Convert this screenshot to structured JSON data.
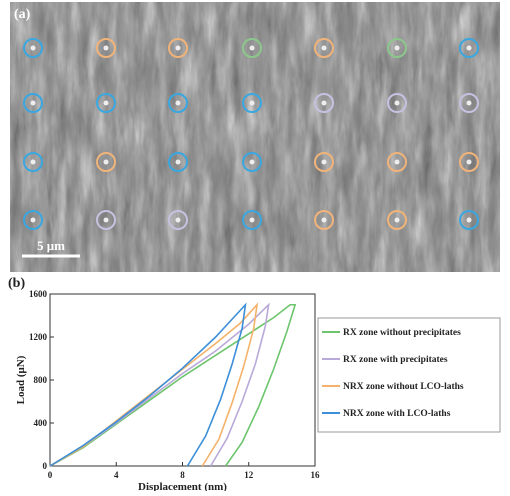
{
  "panel_a": {
    "label": "(a)",
    "scale_bar": "5 μm"
  },
  "chart_data": {
    "type": "line",
    "label": "(b)",
    "xlabel": "Displacement (nm)",
    "ylabel": "Load (μN)",
    "xlim": [
      0,
      16
    ],
    "xticks": [
      0,
      4,
      8,
      12,
      16
    ],
    "ylim": [
      0,
      1600
    ],
    "yticks": [
      0,
      400,
      800,
      1200,
      1600
    ],
    "legend": "right",
    "series": [
      {
        "name": "RX zone without precipitates",
        "color": "#6cc56c",
        "x": [
          0,
          2,
          4,
          6,
          8,
          10,
          12,
          13.5,
          14.5,
          14.8,
          14.3,
          13.5,
          12.6,
          11.6,
          10.6
        ],
        "values": [
          0,
          170,
          390,
          610,
          830,
          1030,
          1230,
          1380,
          1500,
          1500,
          1250,
          900,
          550,
          220,
          0
        ]
      },
      {
        "name": "RX zone with precipitates",
        "color": "#b9a9d9",
        "x": [
          0,
          2,
          4,
          6,
          8,
          10,
          12,
          13.2,
          13.0,
          12.4,
          11.6,
          10.7,
          9.7
        ],
        "values": [
          0,
          180,
          400,
          630,
          860,
          1070,
          1320,
          1500,
          1300,
          950,
          600,
          260,
          0
        ]
      },
      {
        "name": "NRX zone without LCO-laths",
        "color": "#f5b26b",
        "x": [
          0,
          2,
          4,
          6,
          8,
          10,
          11.5,
          12.5,
          12.3,
          11.7,
          11.0,
          10.2,
          9.2
        ],
        "values": [
          0,
          180,
          420,
          660,
          900,
          1140,
          1330,
          1500,
          1280,
          930,
          590,
          250,
          0
        ]
      },
      {
        "name": "NRX zone with LCO-laths",
        "color": "#3c8fd8",
        "x": [
          0,
          2,
          4,
          6,
          8,
          10,
          11.8,
          11.6,
          11.0,
          10.3,
          9.4,
          8.3
        ],
        "values": [
          0,
          190,
          410,
          650,
          910,
          1200,
          1500,
          1280,
          950,
          620,
          280,
          0
        ]
      }
    ]
  }
}
